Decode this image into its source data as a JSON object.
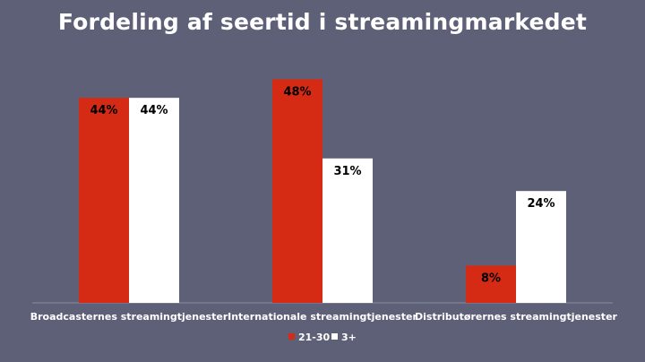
{
  "chart_data": {
    "type": "bar",
    "title": "Fordeling af seertid i streamingmarkedet",
    "categories": [
      "Broadcasternes streamingtjenester",
      "Internationale streamingtjenester",
      "Distributørernes streamingtjenester"
    ],
    "series": [
      {
        "name": "21-30",
        "values": [
          44,
          48,
          8
        ],
        "labels": [
          "44%",
          "48%",
          "8%"
        ],
        "color": "#d52b14"
      },
      {
        "name": "3+",
        "values": [
          44,
          31,
          24
        ],
        "labels": [
          "44%",
          "31%",
          "24%"
        ],
        "color": "#ffffff"
      }
    ],
    "ylim": [
      0,
      52
    ],
    "xlabel": "",
    "ylabel": "",
    "grid": false,
    "legend": "bottom-center",
    "label_color": "#000000",
    "axis_color": "#8a8ca0"
  }
}
